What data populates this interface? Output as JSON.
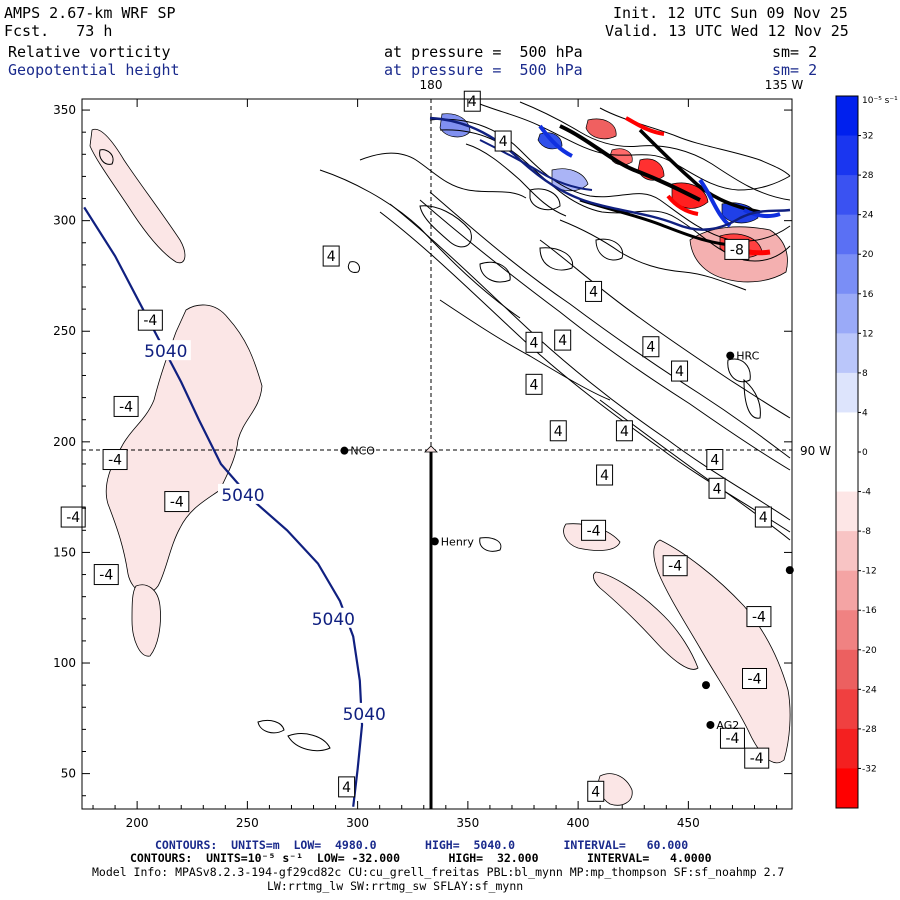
{
  "header": {
    "model": "AMPS 2.67-km WRF SP",
    "fcst_label": "Fcst.",
    "fcst_value": "73 h",
    "init": "Init. 12 UTC Sun 09 Nov 25",
    "valid": "Valid. 13 UTC Wed 12 Nov 25",
    "field1": "Relative vorticity",
    "field2": "Geopotential height",
    "level1": "at pressure =  500 hPa",
    "level2": "at pressure =  500 hPa",
    "sm1": "sm= 2",
    "sm2": "sm= 2"
  },
  "colors": {
    "height_contour": "#102080",
    "positive_fill": "#3040e0",
    "negative_fill": "#f0a0a0",
    "negative_fill_light": "#fbe6e6",
    "vort_contour": "#000000",
    "grid_line": "#000000"
  },
  "chart_data": {
    "type": "contour_map",
    "x_ticks": [
      "200",
      "250",
      "300",
      "350",
      "400",
      "450"
    ],
    "x_tick_values": [
      200,
      250,
      300,
      350,
      400,
      450
    ],
    "y_ticks": [
      "350",
      "300",
      "250",
      "200",
      "150",
      "100",
      "50"
    ],
    "y_tick_values": [
      350,
      300,
      250,
      200,
      150,
      100,
      50
    ],
    "xlim": [
      175,
      497
    ],
    "ylim": [
      34,
      355
    ],
    "meridian_label": "180",
    "meridian_label2": "135 W",
    "meridian_x": 334,
    "parallel_label": "90 W",
    "parallel_y": 196,
    "transect": {
      "x": 334,
      "y_from": 34,
      "y_to": 196
    },
    "stations": [
      {
        "name": "NCO",
        "x": 294,
        "y": 196
      },
      {
        "name": "Henry",
        "x": 335,
        "y": 155
      },
      {
        "name": "HRC",
        "x": 469,
        "y": 239
      },
      {
        "name": "AG2",
        "x": 460,
        "y": 72
      },
      {
        "name": "",
        "x": 496,
        "y": 142
      },
      {
        "name": "",
        "x": 458,
        "y": 90
      }
    ],
    "height_contour": {
      "value": "5040",
      "points": [
        [
          176,
          306
        ],
        [
          190,
          284
        ],
        [
          200,
          265
        ],
        [
          210,
          246
        ],
        [
          220,
          227
        ],
        [
          228,
          210
        ],
        [
          238,
          190
        ],
        [
          252,
          174
        ],
        [
          268,
          160
        ],
        [
          282,
          145
        ],
        [
          292,
          128
        ],
        [
          298,
          112
        ],
        [
          301,
          92
        ],
        [
          302,
          72
        ],
        [
          300,
          52
        ],
        [
          298,
          35
        ]
      ],
      "labels": [
        {
          "text": "5040",
          "x": 213,
          "y": 241
        },
        {
          "text": "5040",
          "x": 248,
          "y": 176
        },
        {
          "text": "5040",
          "x": 289,
          "y": 120
        },
        {
          "text": "5040",
          "x": 303,
          "y": 77
        }
      ]
    },
    "vort_labels": [
      {
        "text": "4",
        "x": 352,
        "y": 354
      },
      {
        "text": "4",
        "x": 366,
        "y": 336
      },
      {
        "text": "4",
        "x": 288,
        "y": 284
      },
      {
        "text": "4",
        "x": 407,
        "y": 268
      },
      {
        "text": "4",
        "x": 380,
        "y": 245
      },
      {
        "text": "4",
        "x": 393,
        "y": 246
      },
      {
        "text": "4",
        "x": 380,
        "y": 226
      },
      {
        "text": "4",
        "x": 433,
        "y": 243
      },
      {
        "text": "4",
        "x": 446,
        "y": 232
      },
      {
        "text": "4",
        "x": 421,
        "y": 205
      },
      {
        "text": "4",
        "x": 391,
        "y": 205
      },
      {
        "text": "4",
        "x": 412,
        "y": 185
      },
      {
        "text": "4",
        "x": 462,
        "y": 192
      },
      {
        "text": "4",
        "x": 463,
        "y": 179
      },
      {
        "text": "4",
        "x": 484,
        "y": 166
      },
      {
        "text": "4",
        "x": 295,
        "y": 44
      },
      {
        "text": "4",
        "x": 408,
        "y": 42
      },
      {
        "text": "-4",
        "x": 206,
        "y": 255
      },
      {
        "text": "-4",
        "x": 195,
        "y": 216
      },
      {
        "text": "-4",
        "x": 190,
        "y": 192
      },
      {
        "text": "-4",
        "x": 218,
        "y": 173
      },
      {
        "text": "-4",
        "x": 171,
        "y": 166
      },
      {
        "text": "-4",
        "x": 186,
        "y": 140
      },
      {
        "text": "-4",
        "x": 407,
        "y": 160
      },
      {
        "text": "-4",
        "x": 444,
        "y": 144
      },
      {
        "text": "-4",
        "x": 482,
        "y": 121
      },
      {
        "text": "-4",
        "x": 480,
        "y": 93
      },
      {
        "text": "-4",
        "x": 470,
        "y": 66
      },
      {
        "text": "-4",
        "x": 481,
        "y": 57
      },
      {
        "text": "-8",
        "x": 472,
        "y": 287
      }
    ],
    "colorbar": {
      "unit": "10⁻⁵ s⁻¹",
      "labels": [
        "32",
        "28",
        "24",
        "20",
        "16",
        "12",
        "8",
        "4",
        "0",
        "-4",
        "-8",
        "-12",
        "-16",
        "-20",
        "-24",
        "-28",
        "-32"
      ],
      "bins": [
        "#0020ee",
        "#1a36f0",
        "#3a52f2",
        "#5a70f4",
        "#7a8ef6",
        "#9aaaf8",
        "#bac6fa",
        "#dde4fc",
        "#ffffff",
        "#ffffff",
        "#fde6e6",
        "#f8c4c4",
        "#f4a4a4",
        "#f08282",
        "#ec6060",
        "#f04040",
        "#f42020",
        "#ff0000"
      ]
    }
  },
  "footer": {
    "line1": "CONTOURS:  UNITS=m  LOW=  4980.0       HIGH=  5040.0       INTERVAL=   60.000",
    "line2": "CONTOURS:  UNITS=10⁻⁵ s⁻¹  LOW= -32.000       HIGH=  32.000       INTERVAL=   4.0000",
    "line3": "Model Info: MPASv8.2.3-194-gf29cd82c CU:cu_grell_freitas PBL:bl_mynn MP:mp_thompson SF:sf_noahmp 2.7",
    "line4": "LW:rrtmg_lw SW:rrtmg_sw SFLAY:sf_mynn"
  }
}
